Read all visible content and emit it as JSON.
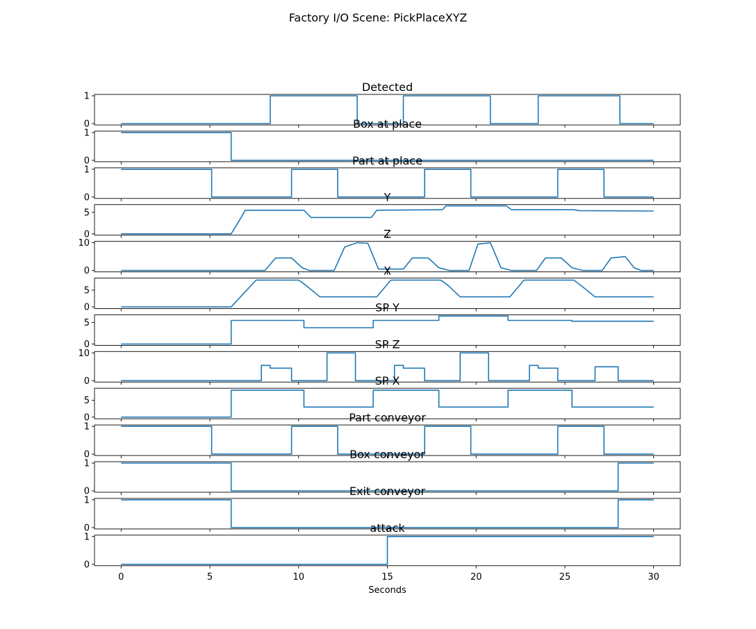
{
  "figure": {
    "title": "Factory I/O Scene: PickPlaceXYZ",
    "line_color": "#1f77b4"
  },
  "chart_data": {
    "type": "line",
    "title": "Factory I/O Scene: PickPlaceXYZ",
    "xlabel": "Seconds",
    "xlim": [
      -1.5,
      31.5
    ],
    "xticks": [
      0,
      5,
      10,
      15,
      20,
      25,
      30
    ],
    "grid": false,
    "series": [
      {
        "name": "Detected",
        "ylim": [
          -0.05,
          1.05
        ],
        "yticks": [
          0,
          1
        ],
        "step": true,
        "x": [
          0,
          8.4,
          13.3,
          15.9,
          20.8,
          23.5,
          28.1,
          30
        ],
        "y": [
          0,
          1,
          0,
          1,
          0,
          1,
          0,
          0
        ]
      },
      {
        "name": "Box at place",
        "ylim": [
          -0.05,
          1.05
        ],
        "yticks": [
          0,
          1
        ],
        "step": true,
        "x": [
          0,
          6.2,
          30
        ],
        "y": [
          1,
          0,
          0
        ]
      },
      {
        "name": "Part at place",
        "ylim": [
          -0.05,
          1.05
        ],
        "yticks": [
          0,
          1
        ],
        "step": true,
        "x": [
          0,
          5.1,
          9.6,
          12.2,
          17.1,
          19.7,
          24.6,
          27.2,
          30
        ],
        "y": [
          1,
          0,
          1,
          0,
          1,
          0,
          1,
          0,
          0
        ]
      },
      {
        "name": "Y",
        "ylim": [
          -0.3,
          6.8
        ],
        "yticks": [
          0,
          5
        ],
        "step": false,
        "x": [
          0,
          6.2,
          6.6,
          7.0,
          10.3,
          10.7,
          14.1,
          14.4,
          18.1,
          18.3,
          21.7,
          22.0,
          25.5,
          25.8,
          30
        ],
        "y": [
          0,
          0,
          2.7,
          5.5,
          5.5,
          3.8,
          3.8,
          5.5,
          5.6,
          6.5,
          6.5,
          5.6,
          5.6,
          5.4,
          5.3
        ]
      },
      {
        "name": "Z",
        "ylim": [
          -0.5,
          10.5
        ],
        "yticks": [
          0,
          10
        ],
        "step": false,
        "x": [
          0,
          8.1,
          8.7,
          9.6,
          10.2,
          10.6,
          12.0,
          12.6,
          13.3,
          13.9,
          14.5,
          15.9,
          16.4,
          17.3,
          17.9,
          18.5,
          19.6,
          20.1,
          20.8,
          21.4,
          22.0,
          23.4,
          23.9,
          24.8,
          25.4,
          26.0,
          27.1,
          27.6,
          28.4,
          28.9,
          29.3,
          30
        ],
        "y": [
          0,
          0,
          4.5,
          4.5,
          1.0,
          0,
          0,
          8.5,
          10,
          9.8,
          0.5,
          0.5,
          4.5,
          4.5,
          1.0,
          0,
          0,
          9.5,
          10,
          1.0,
          0,
          0,
          4.5,
          4.5,
          1.0,
          0,
          0,
          4.5,
          5.0,
          1.0,
          0,
          0
        ]
      },
      {
        "name": "X",
        "ylim": [
          -0.5,
          8.6
        ],
        "yticks": [
          0,
          5
        ],
        "step": false,
        "x": [
          0,
          6.2,
          7.6,
          10.0,
          10.4,
          11.2,
          14.4,
          15.2,
          18.0,
          18.4,
          19.1,
          21.9,
          22.7,
          25.5,
          26.0,
          26.7,
          30
        ],
        "y": [
          0,
          0,
          8.0,
          8.0,
          6.5,
          3.0,
          3.0,
          8.0,
          8.0,
          6.5,
          3.0,
          3.0,
          8.0,
          8.0,
          6.0,
          3.0,
          3.0
        ]
      },
      {
        "name": "SP Y",
        "ylim": [
          -0.3,
          6.8
        ],
        "yticks": [
          0,
          5
        ],
        "step": true,
        "x": [
          0,
          6.2,
          10.3,
          14.2,
          17.9,
          21.8,
          25.4,
          30
        ],
        "y": [
          0,
          5.5,
          3.8,
          5.5,
          6.5,
          5.5,
          5.3,
          5.3
        ]
      },
      {
        "name": "SP Z",
        "ylim": [
          -0.5,
          10.5
        ],
        "yticks": [
          0,
          10
        ],
        "step": true,
        "x": [
          0,
          7.9,
          8.4,
          9.6,
          11.6,
          13.2,
          15.4,
          15.9,
          17.1,
          19.1,
          20.7,
          23.0,
          23.5,
          24.6,
          26.7,
          28.0,
          30
        ],
        "y": [
          0,
          5.5,
          4.5,
          0,
          10,
          0,
          5.5,
          4.5,
          0,
          10,
          0,
          5.5,
          4.5,
          0,
          5.0,
          0,
          0
        ]
      },
      {
        "name": "SP X",
        "ylim": [
          -0.5,
          8.6
        ],
        "yticks": [
          0,
          5
        ],
        "step": true,
        "x": [
          0,
          6.2,
          10.3,
          14.2,
          17.9,
          21.8,
          25.4,
          30
        ],
        "y": [
          0,
          8,
          3,
          8,
          3,
          8,
          3,
          3
        ]
      },
      {
        "name": "Part conveyor",
        "ylim": [
          -0.05,
          1.05
        ],
        "yticks": [
          0,
          1
        ],
        "step": true,
        "x": [
          0,
          5.1,
          9.6,
          12.2,
          17.1,
          19.7,
          24.6,
          27.2,
          30
        ],
        "y": [
          1,
          0,
          1,
          0,
          1,
          0,
          1,
          0,
          0
        ]
      },
      {
        "name": "Box conveyor",
        "ylim": [
          -0.05,
          1.05
        ],
        "yticks": [
          0,
          1
        ],
        "step": true,
        "x": [
          0,
          6.2,
          28.0,
          30
        ],
        "y": [
          1,
          0,
          1,
          1
        ]
      },
      {
        "name": "Exit conveyor",
        "ylim": [
          -0.05,
          1.05
        ],
        "yticks": [
          0,
          1
        ],
        "step": true,
        "x": [
          0,
          6.2,
          28.0,
          30
        ],
        "y": [
          1,
          0,
          1,
          1
        ]
      },
      {
        "name": "attack",
        "ylim": [
          -0.05,
          1.05
        ],
        "yticks": [
          0,
          1
        ],
        "step": true,
        "x": [
          0,
          15.0,
          30
        ],
        "y": [
          0,
          1,
          1
        ]
      }
    ]
  }
}
